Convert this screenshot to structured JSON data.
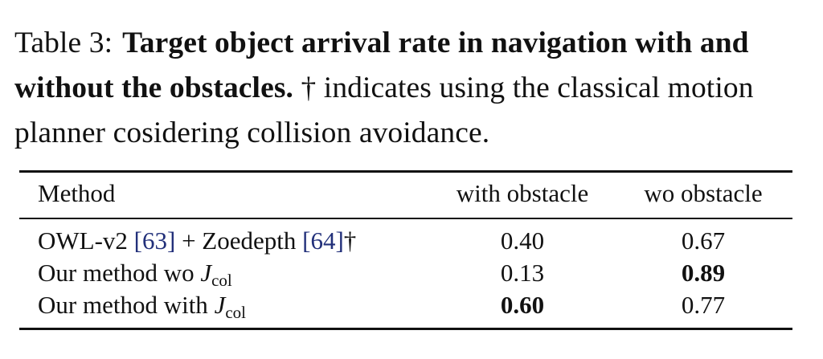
{
  "caption": {
    "label": "Table 3:",
    "bold_text": "Target object arrival rate in navigation with and without the obstacles.",
    "rest_text": "† indicates using the classical motion planner cosidering collision avoidance."
  },
  "table": {
    "headers": [
      "Method",
      "with obstacle",
      "wo obstacle"
    ],
    "rows": [
      {
        "method_parts": [
          "OWL-v2 ",
          "[63]",
          " + Zoedepth ",
          "[64]",
          "†"
        ],
        "with_obstacle": "0.40",
        "wo_obstacle": "0.67"
      },
      {
        "method_prefix": "Our method wo ",
        "symbol": "J",
        "subscript": "col",
        "with_obstacle": "0.13",
        "wo_obstacle": "0.89"
      },
      {
        "method_prefix": "Our method with ",
        "symbol": "J",
        "subscript": "col",
        "with_obstacle": "0.60",
        "wo_obstacle": "0.77"
      }
    ],
    "bold_cells": [
      "rows.1.wo_obstacle",
      "rows.2.with_obstacle"
    ]
  },
  "colors": {
    "text": "#111111",
    "citation": "#22307a",
    "background": "#ffffff"
  }
}
